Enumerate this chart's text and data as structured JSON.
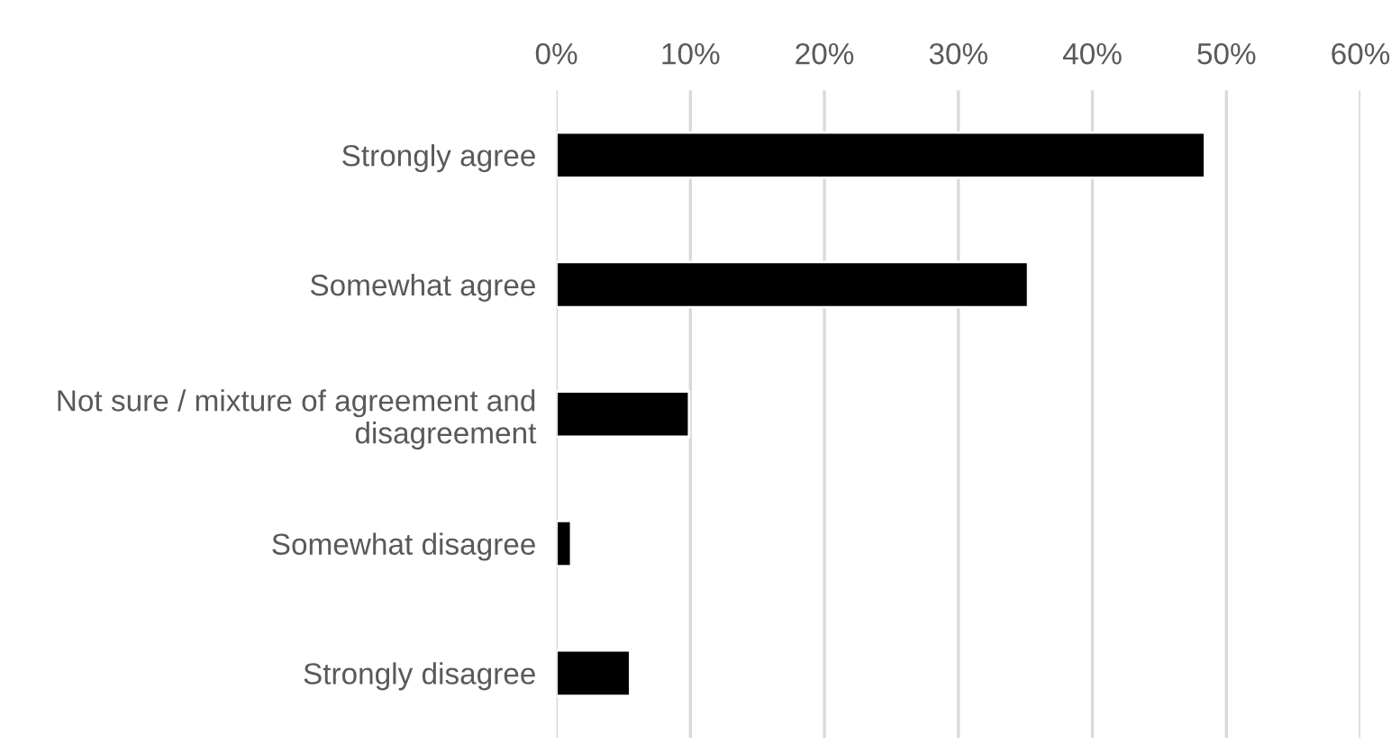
{
  "chart_data": {
    "type": "bar",
    "orientation": "horizontal",
    "categories": [
      "Strongly agree",
      "Somewhat agree",
      "Not sure / mixture of agreement and disagreement",
      "Somewhat disagree",
      "Strongly disagree"
    ],
    "values": [
      48.4,
      35.2,
      9.9,
      1.1,
      5.5
    ],
    "color": "#000000",
    "xlim": [
      0,
      60
    ],
    "xticks": [
      {
        "value": 0,
        "label": "0%"
      },
      {
        "value": 10,
        "label": "10%"
      },
      {
        "value": 20,
        "label": "20%"
      },
      {
        "value": 30,
        "label": "30%"
      },
      {
        "value": 40,
        "label": "40%"
      },
      {
        "value": 50,
        "label": "50%"
      },
      {
        "value": 60,
        "label": "60%"
      }
    ],
    "grid": "x",
    "legend": false
  }
}
